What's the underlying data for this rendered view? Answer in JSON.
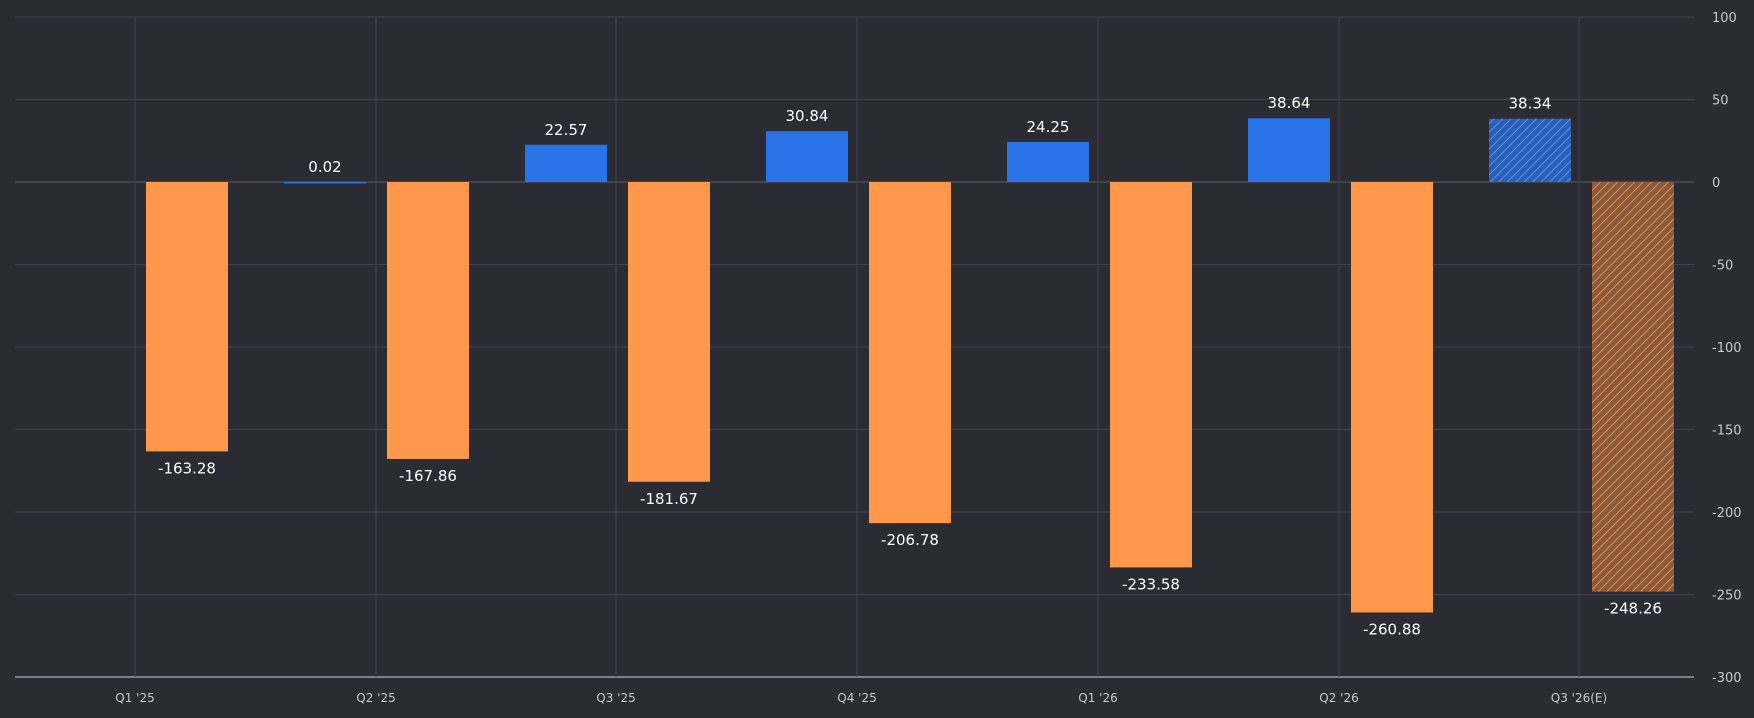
{
  "chart_data": {
    "type": "bar",
    "categories": [
      "Q1 '25",
      "Q2 '25",
      "Q3 '25",
      "Q4 '25",
      "Q1 '26",
      "Q2 '26",
      "Q3 '26(E)"
    ],
    "series": [
      {
        "values": [
          0.02,
          22.57,
          30.84,
          24.25,
          38.64,
          38.34,
          null
        ],
        "labels": [
          "0.02",
          "22.57",
          "30.84",
          "24.25",
          "38.64",
          "38.34",
          ""
        ],
        "color": "#2a72e8",
        "estimate": [
          false,
          false,
          false,
          false,
          false,
          true,
          false
        ]
      },
      {
        "values": [
          -163.28,
          -167.86,
          -181.67,
          -206.78,
          -233.58,
          -260.88,
          -248.26
        ],
        "labels": [
          "-163.28",
          "-167.86",
          "-181.67",
          "-206.78",
          "-233.58",
          "-260.88",
          "-248.26"
        ],
        "color": "#ff984a",
        "estimate": [
          false,
          false,
          false,
          false,
          false,
          false,
          true
        ]
      }
    ],
    "yticks": [
      100,
      50,
      0,
      -50,
      -100,
      -150,
      -200,
      -250,
      -300
    ],
    "ytick_labels": [
      "100",
      "50",
      "0",
      "-50",
      "-100",
      "-150",
      "-200",
      "-250",
      "-300"
    ],
    "ylim": [
      -300,
      100
    ],
    "axis_position": "right",
    "grid": true,
    "colors": {
      "background": "#2a2b33",
      "grid": "#40424c",
      "axis": "#9a9ca6",
      "zero_line": "#5a5c66",
      "label_text": "#ffffff",
      "tick_text": "#c7c9d1"
    }
  }
}
